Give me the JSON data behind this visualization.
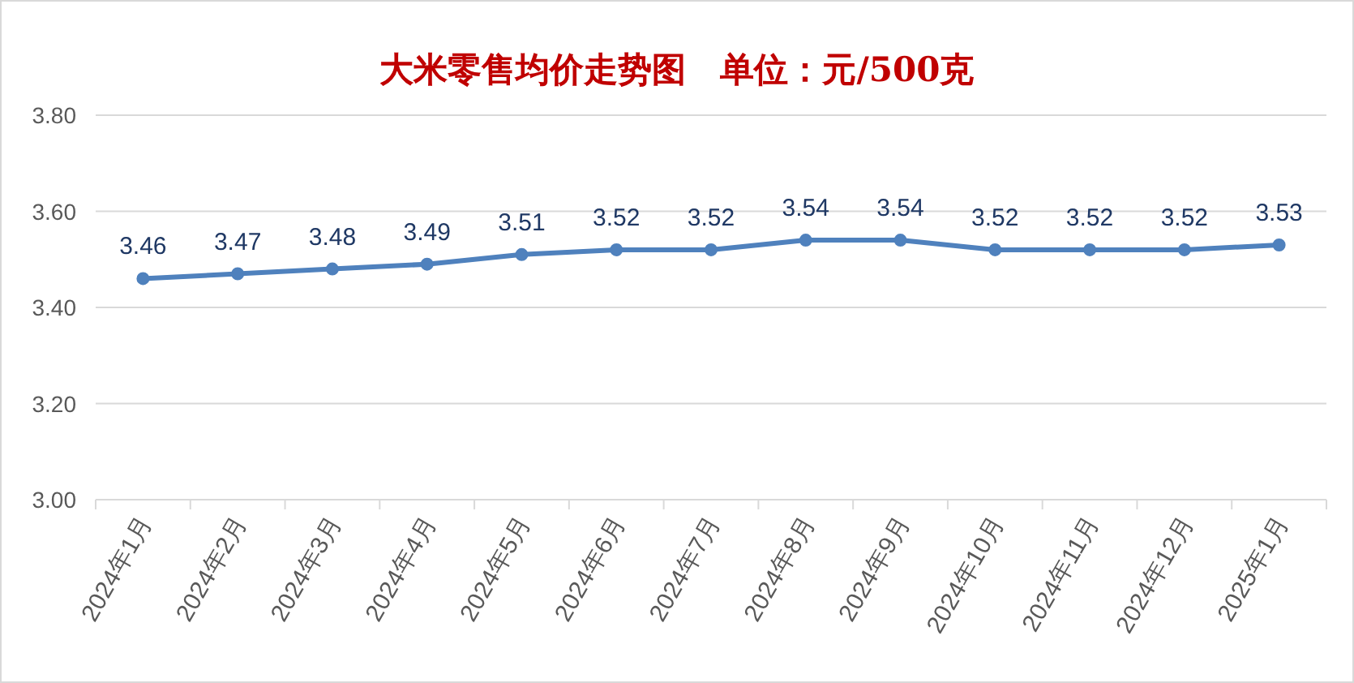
{
  "chart_data": {
    "type": "line",
    "title": "大米零售均价走势图　单位：元/500克",
    "categories": [
      "2024年1月",
      "2024年2月",
      "2024年3月",
      "2024年4月",
      "2024年5月",
      "2024年6月",
      "2024年7月",
      "2024年8月",
      "2024年9月",
      "2024年10月",
      "2024年11月",
      "2024年12月",
      "2025年1月"
    ],
    "series": [
      {
        "color": "#4f81bd",
        "values": [
          3.46,
          3.47,
          3.48,
          3.49,
          3.51,
          3.52,
          3.52,
          3.54,
          3.54,
          3.52,
          3.52,
          3.52,
          3.53
        ]
      }
    ],
    "ylim": [
      3.0,
      3.8
    ],
    "yticks": [
      {
        "value": 3.0,
        "label": "3.00"
      },
      {
        "value": 3.2,
        "label": "3.20"
      },
      {
        "value": 3.4,
        "label": "3.40"
      },
      {
        "value": 3.6,
        "label": "3.60"
      },
      {
        "value": 3.8,
        "label": "3.80"
      }
    ],
    "grid": "y",
    "marker": "circle",
    "line_style": "solid",
    "data_labels": true
  }
}
